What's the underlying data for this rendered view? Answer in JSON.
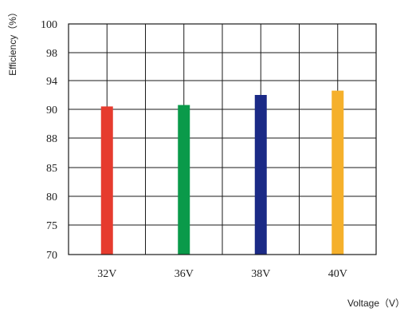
{
  "chart_data": {
    "type": "bar",
    "categories": [
      "32V",
      "36V",
      "38V",
      "40V"
    ],
    "values": [
      90.4,
      90.6,
      92.0,
      92.6
    ],
    "colors": [
      "#e63b2e",
      "#0a9a4a",
      "#1b2a86",
      "#f5b02b"
    ],
    "y_ticks": [
      "100",
      "98",
      "94",
      "90",
      "88",
      "85",
      "80",
      "75",
      "70"
    ],
    "ylabel": "Efficiency（%）",
    "xlabel": "Voltage（V）",
    "grid": true,
    "y_scale": "categorical ticks (non-linear spacing)"
  }
}
